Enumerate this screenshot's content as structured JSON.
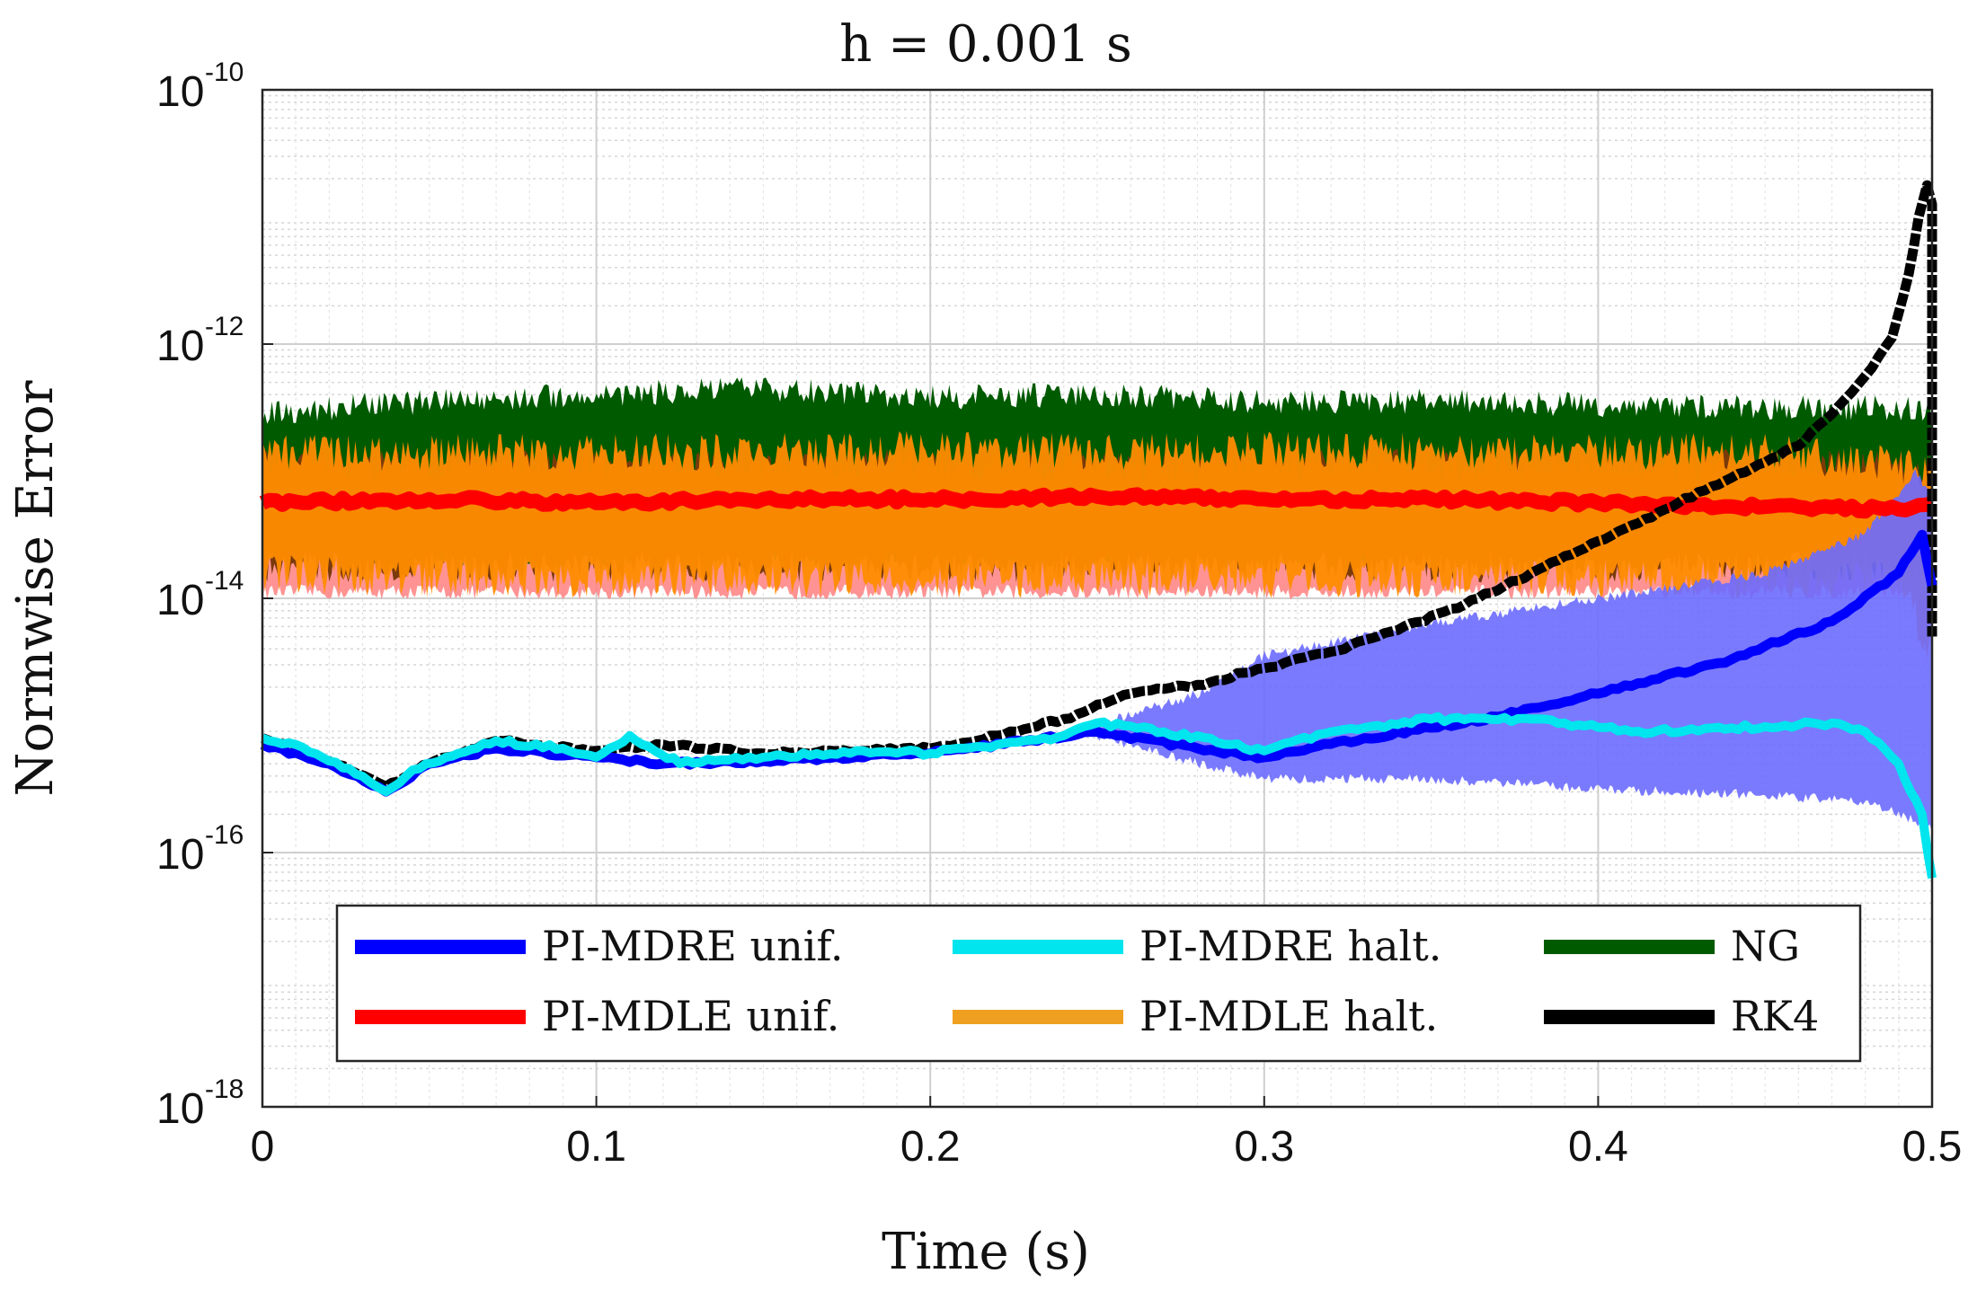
{
  "chart_data": {
    "type": "line",
    "title": "h = 0.001 s",
    "xlabel": "Time (s)",
    "ylabel": "Normwise Error",
    "xlim": [
      0,
      0.5
    ],
    "ylim_log10": [
      -18,
      -10
    ],
    "yscale": "log",
    "grid": true,
    "minor_grid": true,
    "x_ticks": [
      0,
      0.1,
      0.2,
      0.3,
      0.4,
      0.5
    ],
    "x_tick_labels": [
      "0",
      "0.1",
      "0.2",
      "0.3",
      "0.4",
      "0.5"
    ],
    "y_ticks_log10": [
      -18,
      -16,
      -14,
      -12,
      -10
    ],
    "y_tick_labels": [
      {
        "base": "10",
        "exp": "-18"
      },
      {
        "base": "10",
        "exp": "-16"
      },
      {
        "base": "10",
        "exp": "-14"
      },
      {
        "base": "10",
        "exp": "-12"
      },
      {
        "base": "10",
        "exp": "-10"
      }
    ],
    "legend_position": "bottom",
    "series": [
      {
        "name": "PI-MDRE unif.",
        "color": "#0000ff",
        "band_color": "#6b6bff",
        "log10_center": [
          [
            0,
            -15.15
          ],
          [
            0.02,
            -15.3
          ],
          [
            0.037,
            -15.52
          ],
          [
            0.05,
            -15.3
          ],
          [
            0.07,
            -15.18
          ],
          [
            0.1,
            -15.25
          ],
          [
            0.12,
            -15.3
          ],
          [
            0.15,
            -15.28
          ],
          [
            0.2,
            -15.22
          ],
          [
            0.25,
            -15.05
          ],
          [
            0.28,
            -15.18
          ],
          [
            0.3,
            -15.25
          ],
          [
            0.33,
            -15.1
          ],
          [
            0.36,
            -14.98
          ],
          [
            0.4,
            -14.75
          ],
          [
            0.44,
            -14.48
          ],
          [
            0.47,
            -14.18
          ],
          [
            0.49,
            -13.8
          ],
          [
            0.497,
            -13.5
          ],
          [
            0.5,
            -13.9
          ]
        ],
        "log10_band": [
          [
            0.25,
            -15.08,
            -15.0
          ],
          [
            0.28,
            -15.3,
            -14.75
          ],
          [
            0.3,
            -15.42,
            -14.45
          ],
          [
            0.35,
            -15.42,
            -14.2
          ],
          [
            0.4,
            -15.5,
            -14.0
          ],
          [
            0.45,
            -15.55,
            -13.8
          ],
          [
            0.48,
            -15.6,
            -13.5
          ],
          [
            0.495,
            -15.75,
            -13.0
          ],
          [
            0.5,
            -15.8,
            -13.2
          ]
        ]
      },
      {
        "name": "PI-MDRE halt.",
        "color": "#00e5ee",
        "log10_center": [
          [
            0,
            -15.1
          ],
          [
            0.01,
            -15.15
          ],
          [
            0.02,
            -15.28
          ],
          [
            0.03,
            -15.4
          ],
          [
            0.037,
            -15.52
          ],
          [
            0.045,
            -15.35
          ],
          [
            0.055,
            -15.25
          ],
          [
            0.07,
            -15.12
          ],
          [
            0.09,
            -15.18
          ],
          [
            0.1,
            -15.25
          ],
          [
            0.11,
            -15.08
          ],
          [
            0.125,
            -15.3
          ],
          [
            0.15,
            -15.25
          ],
          [
            0.18,
            -15.2
          ],
          [
            0.2,
            -15.22
          ],
          [
            0.22,
            -15.15
          ],
          [
            0.24,
            -15.08
          ],
          [
            0.25,
            -14.98
          ],
          [
            0.27,
            -15.05
          ],
          [
            0.29,
            -15.15
          ],
          [
            0.3,
            -15.2
          ],
          [
            0.32,
            -15.05
          ],
          [
            0.35,
            -14.95
          ],
          [
            0.38,
            -14.95
          ],
          [
            0.41,
            -15.05
          ],
          [
            0.44,
            -15.02
          ],
          [
            0.47,
            -14.98
          ],
          [
            0.48,
            -15.05
          ],
          [
            0.49,
            -15.3
          ],
          [
            0.497,
            -15.7
          ],
          [
            0.5,
            -16.2
          ]
        ]
      },
      {
        "name": "NG",
        "color": "#005a00",
        "log10_band": [
          [
            0,
            -13.62,
            -12.55
          ],
          [
            0.02,
            -13.62,
            -12.5
          ],
          [
            0.05,
            -13.65,
            -12.45
          ],
          [
            0.1,
            -13.65,
            -12.4
          ],
          [
            0.15,
            -13.65,
            -12.35
          ],
          [
            0.2,
            -13.65,
            -12.42
          ],
          [
            0.25,
            -13.65,
            -12.4
          ],
          [
            0.3,
            -13.65,
            -12.45
          ],
          [
            0.35,
            -13.62,
            -12.45
          ],
          [
            0.4,
            -13.62,
            -12.48
          ],
          [
            0.45,
            -13.6,
            -12.5
          ],
          [
            0.49,
            -13.6,
            -12.5
          ],
          [
            0.5,
            -13.6,
            -12.55
          ]
        ]
      },
      {
        "name": "PI-MDLE unif.",
        "color": "#ff0000",
        "pink_band_color": "#ff8080",
        "log10_center": [
          [
            0,
            -13.25
          ],
          [
            0.05,
            -13.22
          ],
          [
            0.1,
            -13.25
          ],
          [
            0.15,
            -13.22
          ],
          [
            0.2,
            -13.22
          ],
          [
            0.25,
            -13.2
          ],
          [
            0.3,
            -13.22
          ],
          [
            0.35,
            -13.22
          ],
          [
            0.4,
            -13.25
          ],
          [
            0.45,
            -13.28
          ],
          [
            0.49,
            -13.3
          ],
          [
            0.5,
            -13.25
          ]
        ]
      },
      {
        "name": "PI-MDLE halt.",
        "color": "#f0a020",
        "band_color": "#ff8c00",
        "log10_band": [
          [
            0,
            -13.8,
            -12.85
          ],
          [
            0.05,
            -13.85,
            -12.85
          ],
          [
            0.1,
            -13.85,
            -12.85
          ],
          [
            0.15,
            -13.85,
            -12.85
          ],
          [
            0.2,
            -13.85,
            -12.82
          ],
          [
            0.25,
            -13.85,
            -12.85
          ],
          [
            0.3,
            -13.85,
            -12.82
          ],
          [
            0.35,
            -13.85,
            -12.85
          ],
          [
            0.4,
            -13.85,
            -12.85
          ],
          [
            0.45,
            -13.85,
            -12.85
          ],
          [
            0.49,
            -13.85,
            -12.95
          ],
          [
            0.5,
            -14.45,
            -13.0
          ]
        ]
      },
      {
        "name": "RK4",
        "color": "#000000",
        "log10_center": [
          [
            0,
            -15.1
          ],
          [
            0.02,
            -15.28
          ],
          [
            0.037,
            -15.48
          ],
          [
            0.05,
            -15.3
          ],
          [
            0.07,
            -15.12
          ],
          [
            0.1,
            -15.2
          ],
          [
            0.12,
            -15.15
          ],
          [
            0.15,
            -15.22
          ],
          [
            0.2,
            -15.18
          ],
          [
            0.22,
            -15.08
          ],
          [
            0.24,
            -14.95
          ],
          [
            0.26,
            -14.75
          ],
          [
            0.28,
            -14.68
          ],
          [
            0.3,
            -14.55
          ],
          [
            0.32,
            -14.42
          ],
          [
            0.34,
            -14.25
          ],
          [
            0.36,
            -14.05
          ],
          [
            0.38,
            -13.8
          ],
          [
            0.4,
            -13.55
          ],
          [
            0.42,
            -13.3
          ],
          [
            0.44,
            -13.05
          ],
          [
            0.46,
            -12.8
          ],
          [
            0.47,
            -12.55
          ],
          [
            0.48,
            -12.25
          ],
          [
            0.488,
            -11.95
          ],
          [
            0.493,
            -11.45
          ],
          [
            0.496,
            -11.0
          ],
          [
            0.4985,
            -10.75
          ],
          [
            0.5,
            -10.9
          ],
          [
            0.5,
            -14.3
          ]
        ]
      }
    ],
    "legend_items": [
      {
        "label": "PI-MDRE unif.",
        "color": "#0000ff",
        "col": 0,
        "row": 0
      },
      {
        "label": "PI-MDRE halt.",
        "color": "#00e5ee",
        "col": 1,
        "row": 0
      },
      {
        "label": "NG",
        "color": "#005a00",
        "col": 2,
        "row": 0
      },
      {
        "label": "PI-MDLE unif.",
        "color": "#ff0000",
        "col": 0,
        "row": 1
      },
      {
        "label": "PI-MDLE halt.",
        "color": "#f0a020",
        "col": 1,
        "row": 1
      },
      {
        "label": "RK4",
        "color": "#000000",
        "col": 2,
        "row": 1
      }
    ]
  }
}
